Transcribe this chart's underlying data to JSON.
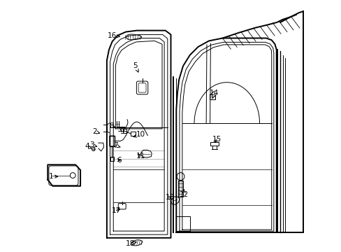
{
  "background_color": "#ffffff",
  "line_color": "#000000",
  "label_color": "#000000",
  "fig_width": 4.89,
  "fig_height": 3.6,
  "dpi": 100,
  "label_positions": {
    "1": [
      0.06,
      0.355,
      0.095,
      0.355
    ],
    "2": [
      0.22,
      0.52,
      0.248,
      0.51
    ],
    "3": [
      0.21,
      0.47,
      0.238,
      0.462
    ],
    "4": [
      0.192,
      0.465,
      0.218,
      0.455
    ],
    "5": [
      0.37,
      0.76,
      0.382,
      0.735
    ],
    "6": [
      0.31,
      0.415,
      0.325,
      0.415
    ],
    "7": [
      0.298,
      0.468,
      0.316,
      0.462
    ],
    "8": [
      0.282,
      0.54,
      0.298,
      0.535
    ],
    "9": [
      0.32,
      0.52,
      0.328,
      0.515
    ],
    "10": [
      0.39,
      0.508,
      0.36,
      0.5
    ],
    "11": [
      0.39,
      0.43,
      0.37,
      0.44
    ],
    "12": [
      0.548,
      0.288,
      0.548,
      0.308
    ],
    "13": [
      0.496,
      0.278,
      0.51,
      0.286
    ],
    "14": [
      0.66,
      0.66,
      0.652,
      0.64
    ],
    "15": [
      0.668,
      0.49,
      0.655,
      0.472
    ],
    "16": [
      0.285,
      0.87,
      0.315,
      0.868
    ],
    "17": [
      0.3,
      0.23,
      0.322,
      0.24
    ],
    "18": [
      0.35,
      0.108,
      0.375,
      0.115
    ]
  }
}
